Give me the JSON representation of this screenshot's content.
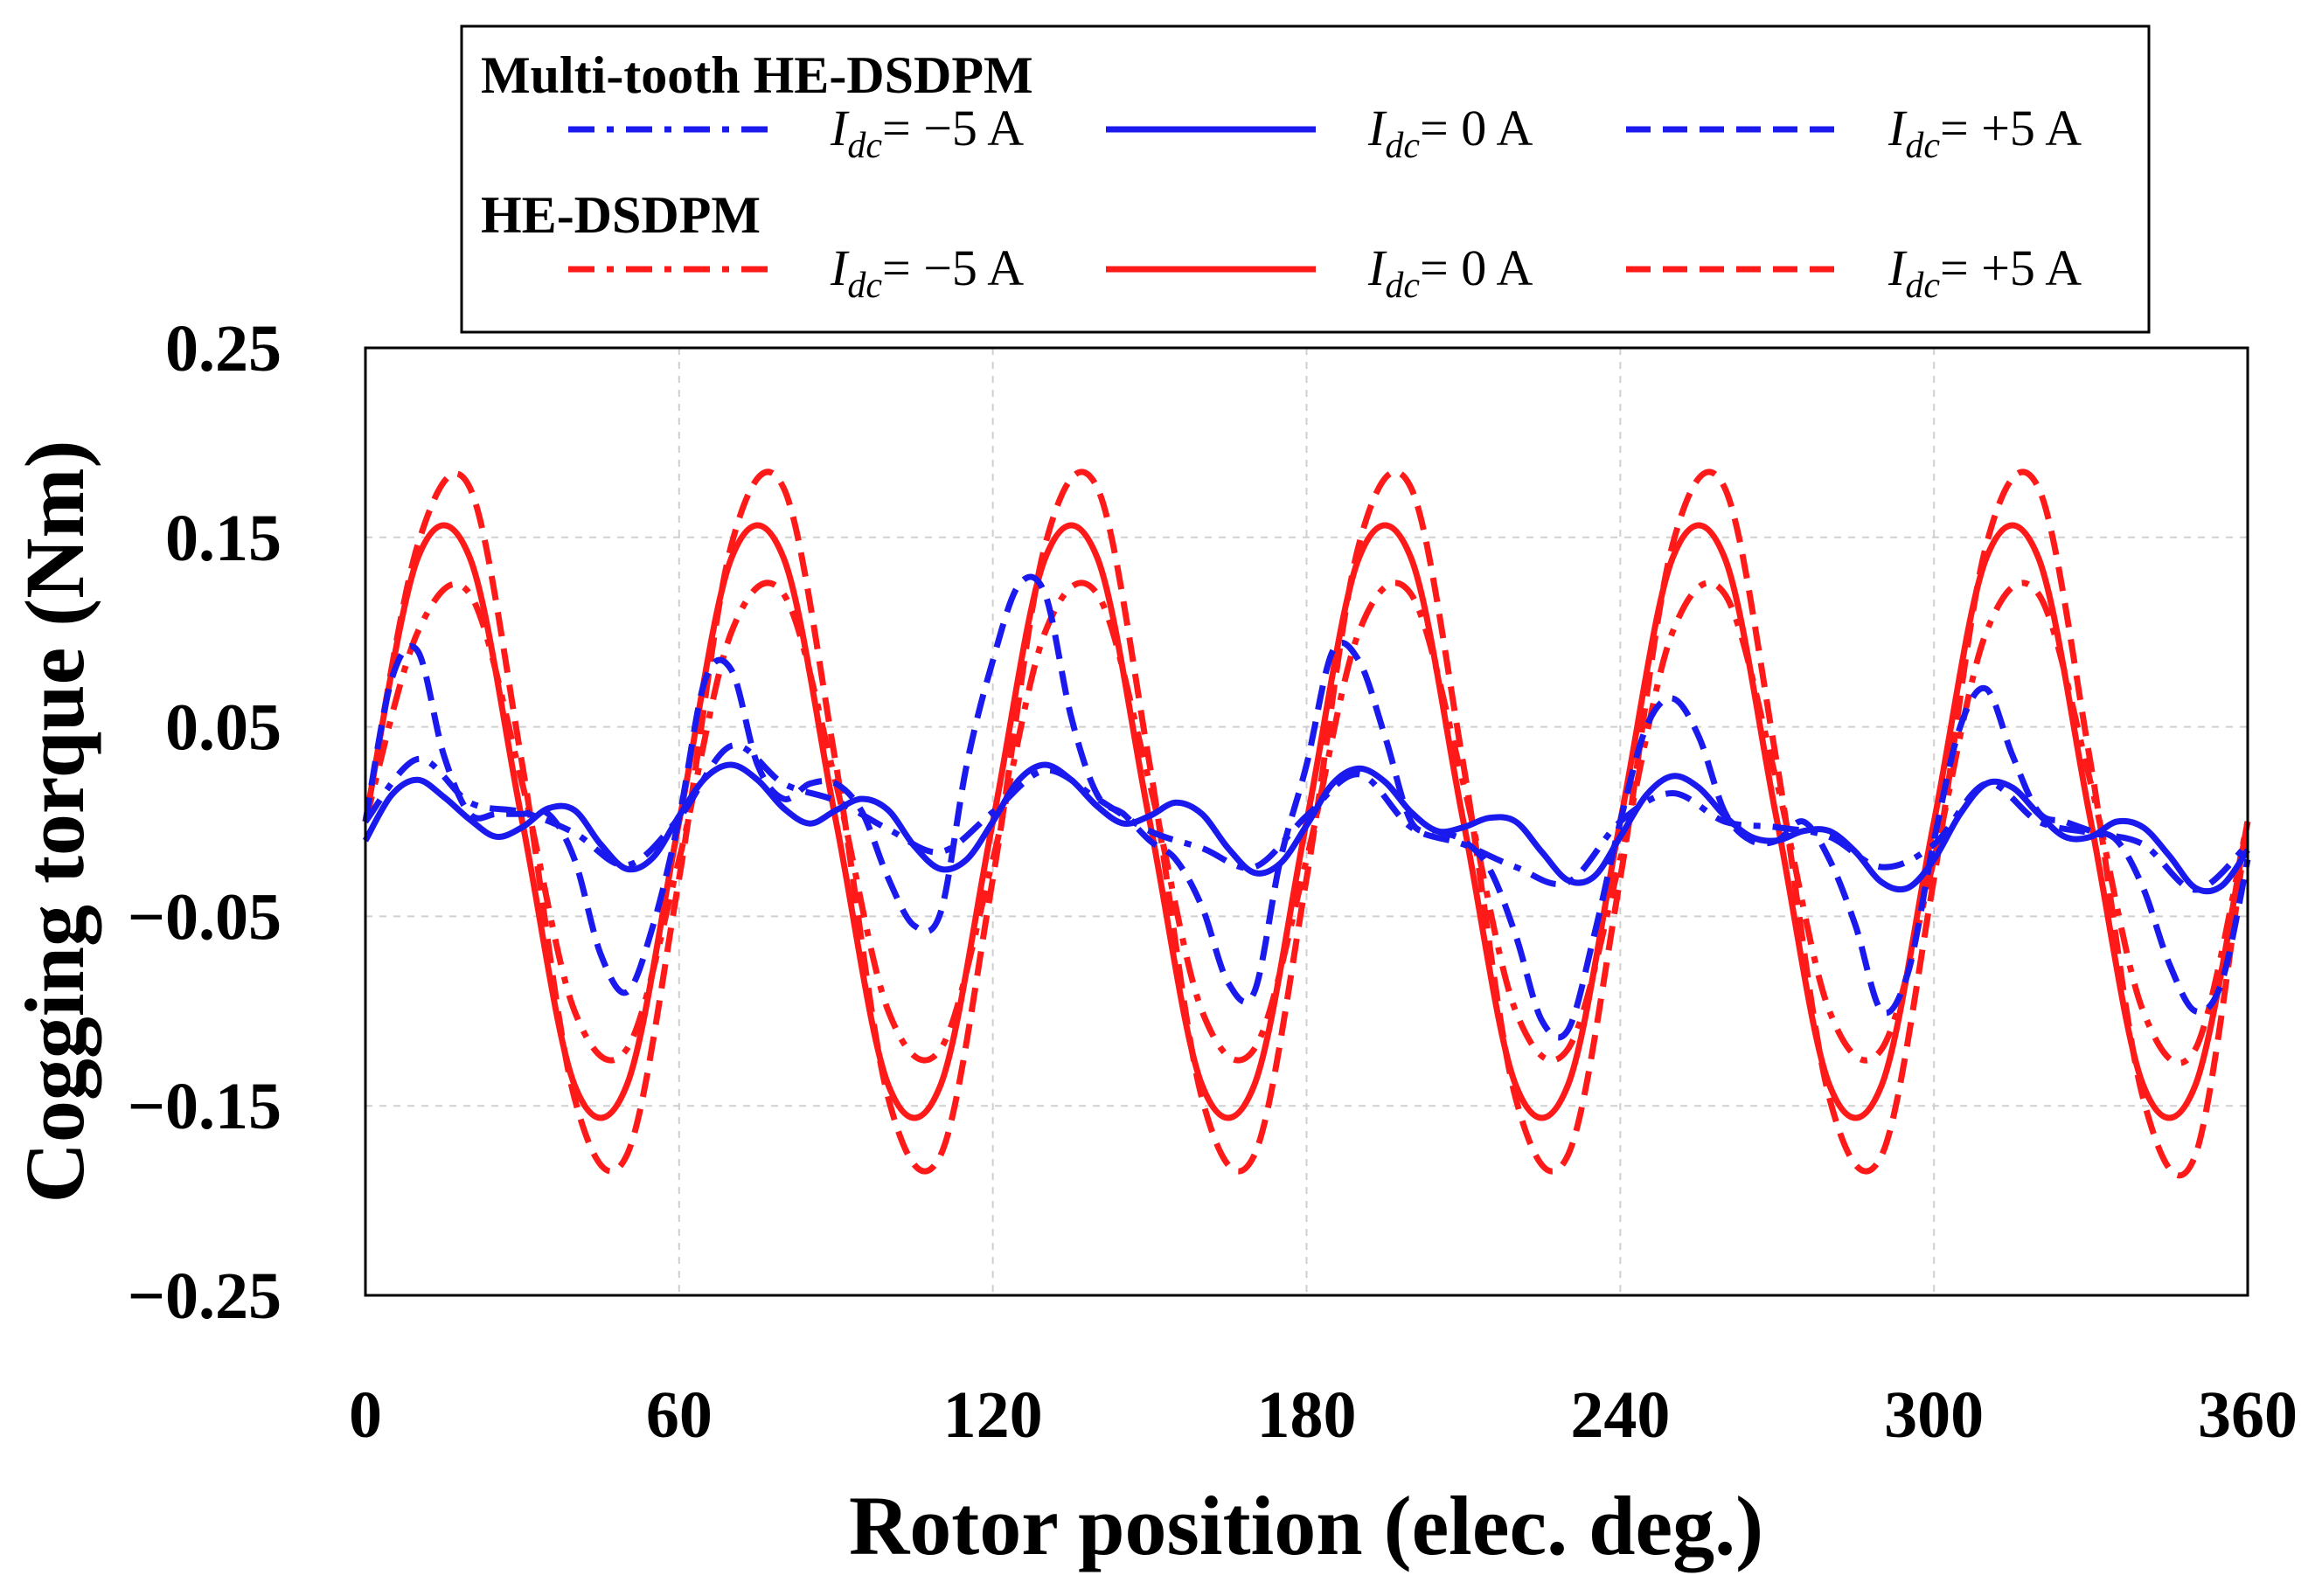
{
  "chart_data": {
    "type": "line",
    "title": "",
    "xlabel": "Rotor position (elec. deg.)",
    "ylabel": "Cogging torque (Nm)",
    "xlim": [
      0,
      360
    ],
    "ylim": [
      -0.25,
      0.25
    ],
    "xticks": [
      0,
      60,
      120,
      180,
      240,
      300,
      360
    ],
    "xtick_labels": [
      "0",
      "60",
      "120",
      "180",
      "240",
      "300",
      "360"
    ],
    "yticks": [
      0.25,
      0.15,
      0.05,
      -0.05,
      -0.15,
      -0.25
    ],
    "ytick_labels": [
      "0.25",
      "0.15",
      "0.05",
      "−0.05",
      "−0.15",
      "−0.25"
    ],
    "grid": true,
    "legend": {
      "placement": "top",
      "groups": [
        {
          "title": "Multi-tooth HE-DSDPM",
          "color": "#1a1aee",
          "entries": [
            {
              "series": "mt_m5",
              "symbol": "I",
              "subscript": "dc",
              "value": "= −5 A",
              "style": "dashdot"
            },
            {
              "series": "mt_0",
              "symbol": "I",
              "subscript": "dc",
              "value": "= 0 A",
              "style": "solid"
            },
            {
              "series": "mt_p5",
              "symbol": "I",
              "subscript": "dc",
              "value": "= +5 A",
              "style": "dashed"
            }
          ]
        },
        {
          "title": "HE-DSDPM",
          "color": "#ff1a1a",
          "entries": [
            {
              "series": "he_m5",
              "symbol": "I",
              "subscript": "dc",
              "value": "= −5 A",
              "style": "dashdot"
            },
            {
              "series": "he_0",
              "symbol": "I",
              "subscript": "dc",
              "value": "= 0 A",
              "style": "solid"
            },
            {
              "series": "he_p5",
              "symbol": "I",
              "subscript": "dc",
              "value": "= +5 A",
              "style": "dashed"
            }
          ]
        }
      ]
    },
    "series": [
      {
        "id": "he_0",
        "name": "HE-DSDPM, Idc = 0 A",
        "color": "#ff1a1a",
        "style": "solid",
        "x": [
          0,
          10,
          20,
          30,
          40,
          50,
          60,
          70,
          80,
          90,
          100,
          110,
          120,
          130,
          140,
          150,
          160,
          170,
          180,
          190,
          200,
          210,
          220,
          230,
          240,
          250,
          260,
          270,
          280,
          290,
          300,
          310,
          320,
          330,
          340,
          350,
          360
        ],
        "y": [
          0.0,
          0.139,
          0.139,
          0.0,
          -0.139,
          -0.139,
          0.0,
          0.139,
          0.139,
          0.0,
          -0.139,
          -0.139,
          0.0,
          0.139,
          0.139,
          0.0,
          -0.139,
          -0.139,
          0.0,
          0.139,
          0.139,
          0.0,
          -0.139,
          -0.139,
          0.0,
          0.139,
          0.139,
          0.0,
          -0.139,
          -0.139,
          0.0,
          0.139,
          0.139,
          0.0,
          -0.139,
          -0.139,
          0.0
        ]
      },
      {
        "id": "he_p5",
        "name": "HE-DSDPM, Idc = +5 A",
        "color": "#ff1a1a",
        "style": "dashed",
        "x": [
          0,
          10,
          20,
          30,
          40,
          50,
          60,
          70,
          80,
          90,
          100,
          110,
          120,
          130,
          140,
          150,
          160,
          170,
          180,
          190,
          200,
          210,
          220,
          230,
          240,
          250,
          260,
          270,
          280,
          290,
          300,
          310,
          320,
          330,
          340,
          350,
          360
        ],
        "y": [
          0.0,
          0.146,
          0.176,
          0.03,
          -0.146,
          -0.176,
          -0.03,
          0.146,
          0.176,
          0.03,
          -0.146,
          -0.176,
          -0.03,
          0.146,
          0.176,
          0.03,
          -0.146,
          -0.176,
          -0.03,
          0.146,
          0.176,
          0.03,
          -0.146,
          -0.176,
          -0.03,
          0.146,
          0.176,
          0.03,
          -0.146,
          -0.176,
          -0.03,
          0.146,
          0.176,
          0.03,
          -0.146,
          -0.176,
          0.0
        ]
      },
      {
        "id": "he_m5",
        "name": "HE-DSDPM, Idc = −5 A",
        "color": "#ff1a1a",
        "style": "dashdot",
        "x": [
          0,
          10,
          20,
          30,
          40,
          50,
          60,
          70,
          80,
          90,
          100,
          110,
          120,
          130,
          140,
          150,
          160,
          170,
          180,
          190,
          200,
          210,
          220,
          230,
          240,
          250,
          260,
          270,
          280,
          290,
          300,
          310,
          320,
          330,
          340,
          350,
          360
        ],
        "y": [
          0.0,
          0.1,
          0.12,
          0.02,
          -0.1,
          -0.12,
          -0.02,
          0.1,
          0.12,
          0.02,
          -0.1,
          -0.12,
          -0.02,
          0.1,
          0.12,
          0.02,
          -0.1,
          -0.12,
          -0.02,
          0.1,
          0.12,
          0.02,
          -0.1,
          -0.12,
          -0.02,
          0.1,
          0.12,
          0.02,
          -0.1,
          -0.12,
          -0.02,
          0.1,
          0.12,
          0.02,
          -0.1,
          -0.12,
          0.0
        ]
      },
      {
        "id": "mt_0",
        "name": "Multi-tooth HE-DSDPM, Idc = 0 A",
        "color": "#1a1aee",
        "style": "solid",
        "x": [
          0,
          5,
          10,
          15,
          20,
          25,
          30,
          35,
          40,
          45,
          50,
          55,
          60,
          65,
          70,
          75,
          80,
          85,
          90,
          95,
          100,
          105,
          110,
          115,
          120,
          125,
          130,
          135,
          140,
          145,
          150,
          155,
          160,
          165,
          170,
          175,
          180,
          185,
          190,
          195,
          200,
          205,
          210,
          215,
          220,
          225,
          230,
          235,
          240,
          245,
          250,
          255,
          260,
          265,
          270,
          275,
          280,
          285,
          290,
          295,
          300,
          305,
          310,
          315,
          320,
          325,
          330,
          335,
          340,
          345,
          350,
          355,
          360
        ],
        "y": [
          -0.01,
          0.014,
          0.022,
          0.013,
          0.001,
          -0.008,
          -0.003,
          0.007,
          0.006,
          -0.012,
          -0.025,
          -0.019,
          0.003,
          0.023,
          0.03,
          0.022,
          0.007,
          -0.001,
          0.006,
          0.012,
          0.006,
          -0.013,
          -0.025,
          -0.02,
          0.0,
          0.022,
          0.03,
          0.022,
          0.008,
          -0.001,
          0.003,
          0.01,
          0.004,
          -0.014,
          -0.027,
          -0.022,
          -0.002,
          0.02,
          0.028,
          0.021,
          0.005,
          -0.005,
          -0.003,
          0.002,
          0.0,
          -0.016,
          -0.031,
          -0.029,
          -0.008,
          0.014,
          0.024,
          0.018,
          0.003,
          -0.008,
          -0.01,
          -0.005,
          -0.005,
          -0.016,
          -0.032,
          -0.035,
          -0.02,
          0.004,
          0.02,
          0.018,
          0.004,
          -0.008,
          -0.008,
          0.0,
          -0.003,
          -0.018,
          -0.035,
          -0.034,
          -0.015
        ]
      },
      {
        "id": "mt_p5",
        "name": "Multi-tooth HE-DSDPM, Idc = +5 A",
        "color": "#1a1aee",
        "style": "dashed",
        "x": [
          0,
          5,
          10,
          15,
          20,
          25,
          30,
          35,
          40,
          45,
          50,
          55,
          60,
          65,
          70,
          75,
          80,
          85,
          90,
          95,
          100,
          105,
          110,
          115,
          120,
          125,
          130,
          135,
          140,
          145,
          150,
          155,
          160,
          165,
          170,
          175,
          180,
          185,
          190,
          195,
          200,
          205,
          210,
          215,
          220,
          225,
          230,
          235,
          240,
          245,
          250,
          255,
          260,
          265,
          270,
          275,
          280,
          285,
          290,
          295,
          300,
          305,
          310,
          315,
          320,
          325,
          330,
          335,
          340,
          345,
          350,
          355,
          360
        ],
        "y": [
          0.0,
          0.075,
          0.09,
          0.035,
          0.004,
          0.004,
          0.004,
          0.004,
          -0.02,
          -0.07,
          -0.09,
          -0.055,
          0.002,
          0.075,
          0.08,
          0.03,
          0.012,
          0.02,
          0.02,
          0.005,
          -0.03,
          -0.055,
          -0.048,
          0.03,
          0.085,
          0.125,
          0.12,
          0.055,
          0.014,
          0.004,
          -0.01,
          -0.02,
          -0.045,
          -0.085,
          -0.09,
          -0.02,
          0.03,
          0.09,
          0.085,
          0.045,
          0.0,
          -0.005,
          -0.01,
          -0.025,
          -0.06,
          -0.105,
          -0.11,
          -0.06,
          0.0,
          0.05,
          0.065,
          0.045,
          0.005,
          -0.01,
          -0.01,
          0.0,
          -0.02,
          -0.055,
          -0.1,
          -0.08,
          -0.01,
          0.05,
          0.07,
          0.035,
          0.005,
          0.0,
          -0.005,
          -0.01,
          -0.035,
          -0.075,
          -0.1,
          -0.085,
          -0.02
        ]
      },
      {
        "id": "mt_m5",
        "name": "Multi-tooth HE-DSDPM, Idc = −5 A",
        "color": "#1a1aee",
        "style": "dashdot",
        "x": [
          0,
          10,
          20,
          30,
          40,
          50,
          60,
          70,
          80,
          90,
          100,
          110,
          120,
          130,
          140,
          150,
          160,
          170,
          180,
          190,
          200,
          210,
          220,
          230,
          240,
          250,
          260,
          270,
          280,
          290,
          300,
          310,
          320,
          330,
          340,
          350,
          360
        ],
        "y": [
          0.0,
          0.033,
          0.01,
          0.005,
          -0.006,
          -0.023,
          0.002,
          0.04,
          0.02,
          0.011,
          -0.004,
          -0.016,
          0.005,
          0.027,
          0.012,
          -0.005,
          -0.014,
          -0.024,
          0.003,
          0.025,
          -0.003,
          -0.012,
          -0.024,
          -0.032,
          0.0,
          0.015,
          0.0,
          -0.003,
          -0.008,
          -0.024,
          -0.012,
          0.02,
          0.0,
          -0.006,
          -0.012,
          -0.036,
          -0.012
        ]
      }
    ]
  }
}
